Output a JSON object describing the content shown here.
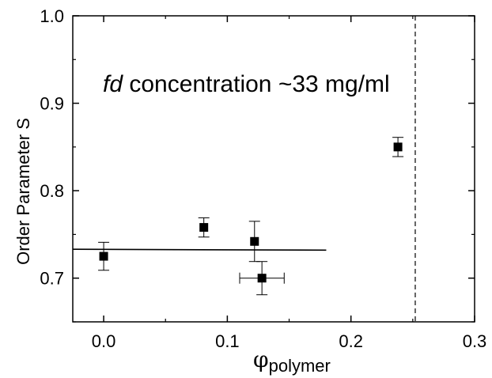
{
  "chart_data": {
    "type": "scatter",
    "title": "",
    "annotation": {
      "italic": "fd",
      "rest": " concentration ~33 mg/ml"
    },
    "xlabel": {
      "symbol": "φ",
      "subscript": "polymer"
    },
    "ylabel": "Order Parameter S",
    "xlim": [
      -0.025,
      0.3
    ],
    "ylim": [
      0.65,
      1.0
    ],
    "x_ticks": [
      0.0,
      0.1,
      0.2,
      0.3
    ],
    "x_tick_labels": [
      "0.0",
      "0.1",
      "0.2",
      "0.3"
    ],
    "y_ticks": [
      0.7,
      0.8,
      0.9,
      1.0
    ],
    "y_tick_labels": [
      "0.7",
      "0.8",
      "0.9",
      "1.0"
    ],
    "grid": false,
    "points": [
      {
        "x": 0.0,
        "y": 0.725,
        "xerr": 0.0,
        "yerr": 0.016
      },
      {
        "x": 0.081,
        "y": 0.758,
        "xerr": 0.0,
        "yerr": 0.011
      },
      {
        "x": 0.122,
        "y": 0.742,
        "xerr": 0.0,
        "yerr": 0.023
      },
      {
        "x": 0.128,
        "y": 0.7,
        "xerr": 0.018,
        "yerr": 0.019
      },
      {
        "x": 0.238,
        "y": 0.85,
        "xerr": 0.0,
        "yerr": 0.011
      }
    ],
    "fit_line": {
      "x": [
        -0.025,
        0.18
      ],
      "y": [
        0.733,
        0.732
      ]
    },
    "vertical_dashed_line": {
      "x": 0.252
    },
    "colors": {
      "marker": "#000000",
      "line": "#000000"
    }
  }
}
